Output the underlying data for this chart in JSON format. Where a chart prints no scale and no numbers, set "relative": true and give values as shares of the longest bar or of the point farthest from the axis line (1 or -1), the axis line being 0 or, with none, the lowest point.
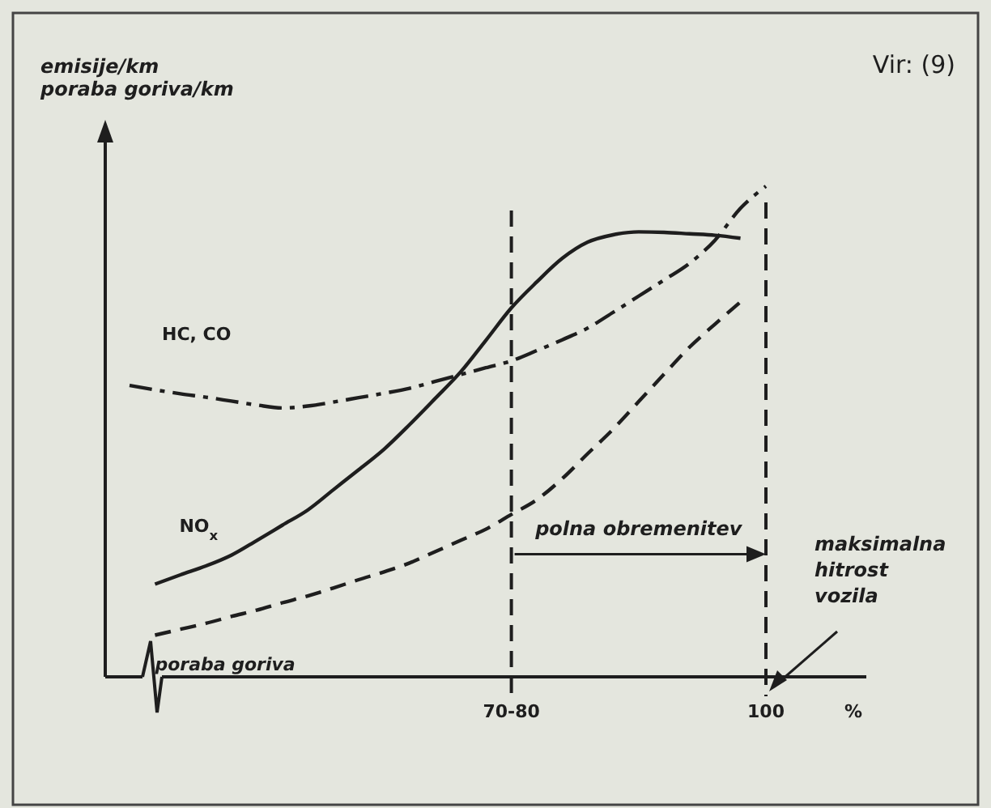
{
  "chart_data": {
    "type": "line",
    "relative": true,
    "ylabel": "emisije/km\nporaba goriva/km",
    "xlabel": "%",
    "legend": false,
    "grid": false,
    "categories": [
      null,
      null,
      null,
      null,
      null,
      null,
      null,
      null,
      null,
      null,
      null,
      null,
      null,
      null,
      null,
      "70-80",
      null,
      null,
      null,
      null,
      null,
      null,
      null,
      null,
      null,
      "100"
    ],
    "series": [
      {
        "name": "HC, CO",
        "color": "#1e1e1e",
        "line_style": "dashed",
        "values": [
          0.594,
          0.585,
          0.577,
          0.57,
          0.562,
          0.554,
          0.548,
          0.552,
          0.56,
          0.569,
          0.578,
          0.588,
          0.602,
          0.616,
          0.63,
          0.644,
          0.665,
          0.687,
          0.711,
          0.743,
          0.776,
          0.809,
          0.843,
          0.89,
          0.955,
          1
        ]
      },
      {
        "name": "NO$_{x}$",
        "color": "#1e1e1e",
        "line_style": "solid",
        "values": [
          null,
          0.189,
          0.208,
          0.226,
          0.248,
          0.278,
          0.309,
          0.34,
          0.381,
          0.422,
          0.464,
          0.514,
          0.567,
          0.621,
          0.686,
          0.752,
          0.805,
          0.853,
          0.886,
          0.901,
          0.907,
          0.906,
          0.903,
          0.9,
          0.894,
          null
        ]
      },
      {
        "name": "poraba goriva",
        "color": "#1e1e1e",
        "line_style": "dashed",
        "values": [
          null,
          0.085,
          0.097,
          0.109,
          0.123,
          0.136,
          0.151,
          0.165,
          0.181,
          0.198,
          0.214,
          0.232,
          0.255,
          0.278,
          0.301,
          0.331,
          0.361,
          0.404,
          0.455,
          0.505,
          0.561,
          0.617,
          0.672,
          0.719,
          0.764,
          null
        ]
      }
    ],
    "ref_lines": [
      {
        "axis": "x",
        "value": "70-80",
        "line_style": "dashed",
        "color": "#1e1e1e"
      },
      {
        "axis": "x",
        "value": "100",
        "line_style": "dashed",
        "color": "#1e1e1e"
      }
    ],
    "annotations": [
      "Vir: (9)",
      "polna obremenitev",
      "maksimalna hitrost vozila"
    ]
  }
}
